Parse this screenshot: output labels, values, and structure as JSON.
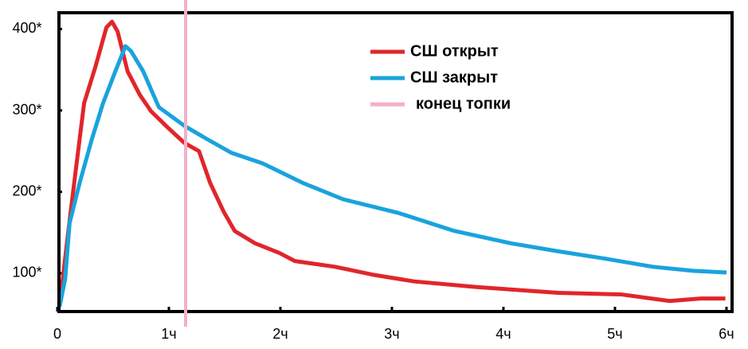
{
  "chart_data": {
    "type": "line",
    "xlim": [
      0,
      6.05
    ],
    "ylim": [
      53,
      420
    ],
    "xticks": [
      0,
      {
        "value": 1,
        "label": "1ч"
      },
      {
        "value": 2,
        "label": "2ч"
      },
      {
        "value": 3,
        "label": "3ч"
      },
      {
        "value": 4,
        "label": "4ч"
      },
      {
        "value": 5,
        "label": "5ч"
      },
      {
        "value": 6,
        "label": "6ч"
      }
    ],
    "yticks": [
      {
        "value": 100,
        "label": "100*"
      },
      {
        "value": 200,
        "label": "200*"
      },
      {
        "value": 300,
        "label": "300*"
      },
      {
        "value": 400,
        "label": "400*"
      }
    ],
    "series": [
      {
        "name": "СШ открыт",
        "color": "#e0262b",
        "x": [
          0.02,
          0.09,
          0.16,
          0.24,
          0.34,
          0.44,
          0.49,
          0.54,
          0.63,
          0.74,
          0.84,
          0.99,
          1.14,
          1.27,
          1.37,
          1.49,
          1.59,
          1.77,
          1.99,
          2.13,
          2.49,
          2.84,
          3.2,
          3.77,
          4.49,
          5.06,
          5.49,
          5.77,
          5.99
        ],
        "values": [
          59,
          142,
          221,
          309,
          353,
          402,
          409,
          397,
          348,
          319,
          299,
          279,
          260,
          250,
          211,
          176,
          152,
          137,
          125,
          115,
          108,
          98,
          90,
          83,
          76,
          74,
          66,
          69,
          69
        ]
      },
      {
        "name": "СШ закрыт",
        "color": "#1aa3dc",
        "x": [
          0.02,
          0.07,
          0.11,
          0.2,
          0.31,
          0.41,
          0.52,
          0.61,
          0.66,
          0.77,
          0.91,
          1.14,
          1.34,
          1.56,
          1.84,
          2.2,
          2.56,
          3.06,
          3.56,
          4.06,
          4.49,
          4.91,
          5.34,
          5.7,
          6.0
        ],
        "values": [
          59,
          93,
          162,
          211,
          265,
          309,
          348,
          379,
          373,
          348,
          304,
          281,
          265,
          248,
          235,
          211,
          191,
          174,
          152,
          137,
          127,
          118,
          108,
          103,
          101
        ]
      }
    ],
    "vline": {
      "x": 1.15,
      "label": "конец топки",
      "color": "#f4b0c8"
    }
  }
}
